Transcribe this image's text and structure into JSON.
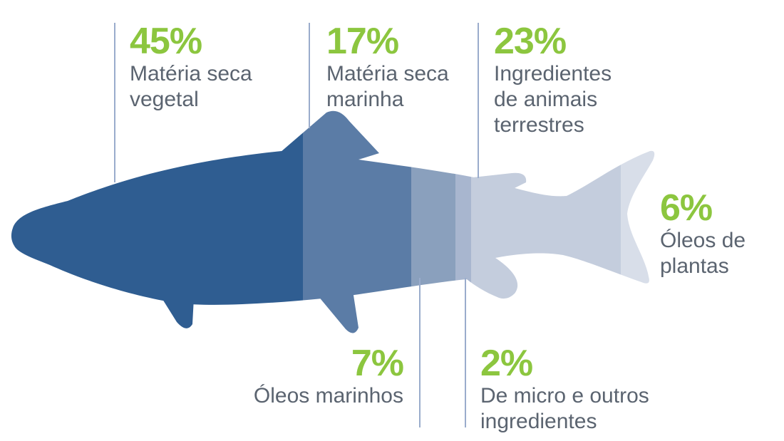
{
  "chart_data": {
    "type": "pie",
    "title": "",
    "segments": [
      {
        "value": 45,
        "label": "45%",
        "name": "Matéria seca\nvegetal",
        "color": "#2f5d91"
      },
      {
        "value": 17,
        "label": "17%",
        "name": "Matéria seca\nmarinha",
        "color": "#5b7ca6"
      },
      {
        "value": 7,
        "label": "7%",
        "name": "Óleos marinhos",
        "color": "#8aa0bd"
      },
      {
        "value": 2,
        "label": "2%",
        "name": "De micro e outros\ningredientes",
        "color": "#a8b6cf"
      },
      {
        "value": 23,
        "label": "23%",
        "name": "Ingredientes\nde animais\nterrestres",
        "color": "#c4cddd"
      },
      {
        "value": 6,
        "label": "6%",
        "name": "Óleos de\nplantas",
        "color": "#d8dee9"
      }
    ]
  },
  "colors": {
    "percent_text": "#8cc63f",
    "label_text": "#5b6470",
    "leader_line": "#9aaccc"
  }
}
